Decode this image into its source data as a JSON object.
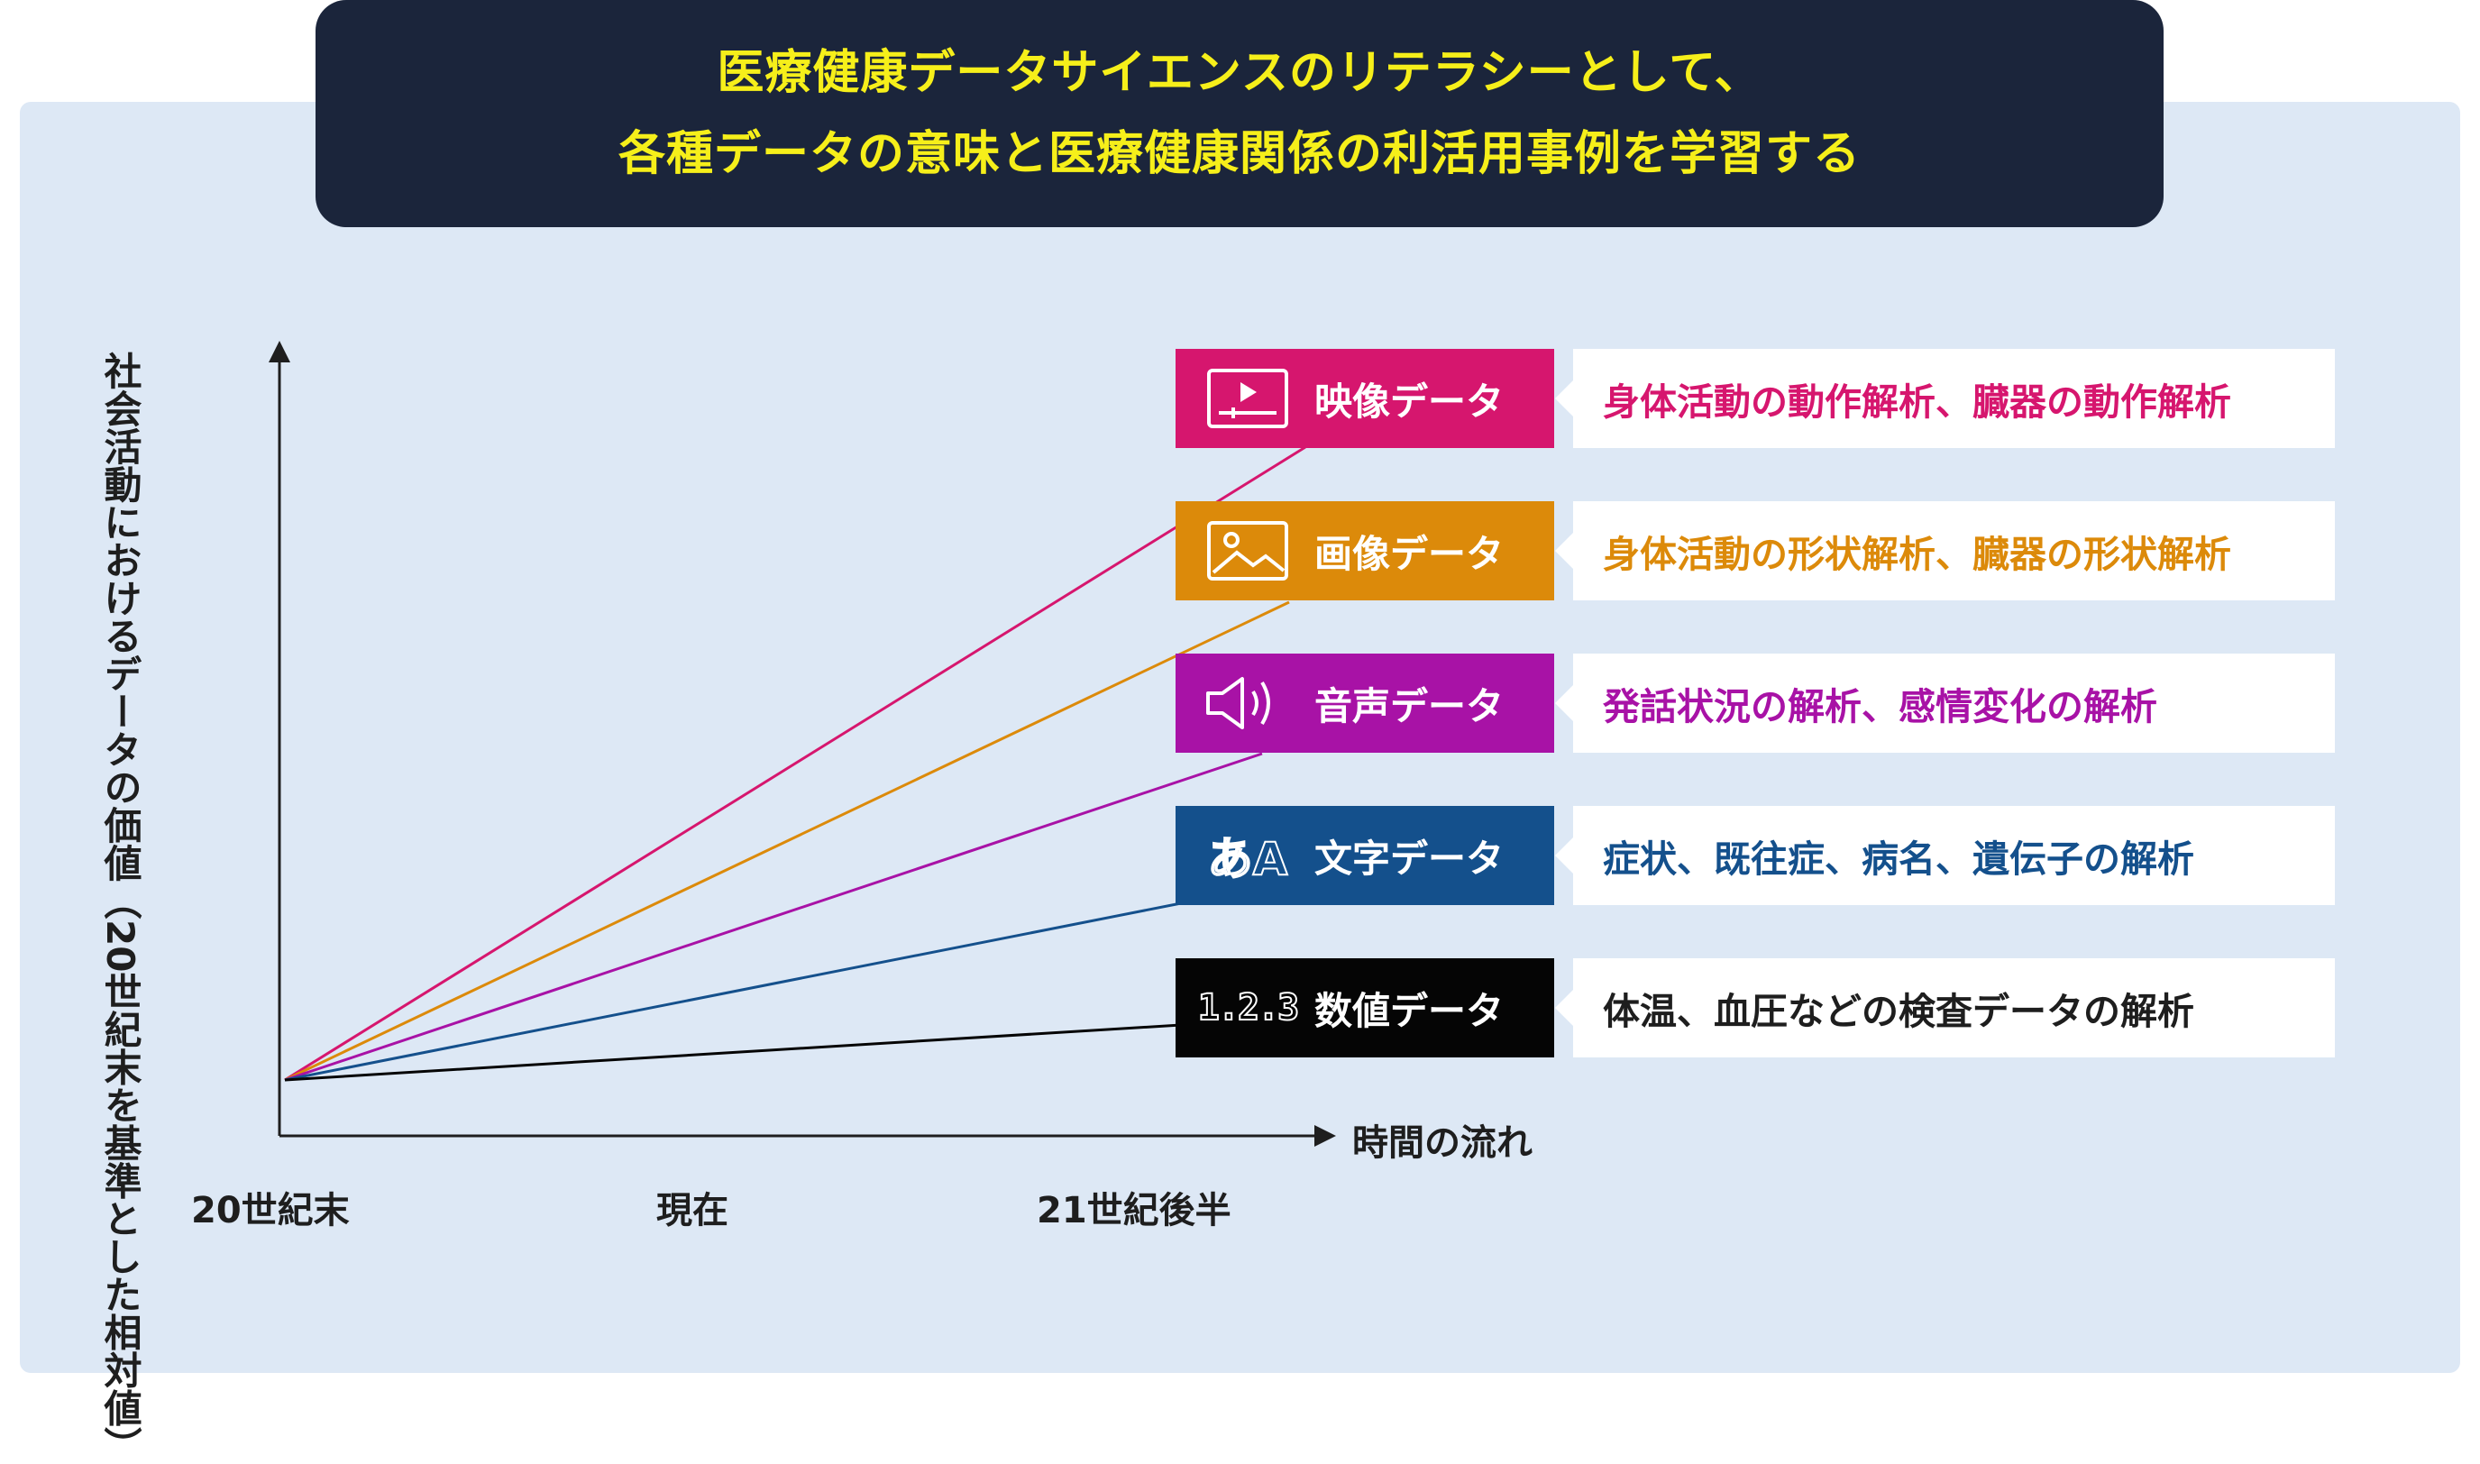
{
  "header": {
    "line1": "医療健康データサイエンスのリテラシーとして、",
    "line2": "各種データの意味と医療健康関係の利活用事例を学習する"
  },
  "axes": {
    "ylabel": "社会活動におけるデータの価値（20世紀末を基準とした相対値）",
    "xlabel": "時間の流れ",
    "ticks": [
      "20世紀末",
      "現在",
      "21世紀後半"
    ]
  },
  "categories": [
    {
      "label": "映像データ",
      "icon": "video-icon",
      "color": "#d6166e",
      "description": "身体活動の動作解析、臓器の動作解析",
      "text_color": "#d6166e"
    },
    {
      "label": "画像データ",
      "icon": "image-icon",
      "color": "#dc8a0a",
      "description": "身体活動の形状解析、臓器の形状解析",
      "text_color": "#dc8a0a"
    },
    {
      "label": "音声データ",
      "icon": "speaker-icon",
      "color": "#a812a6",
      "description": "発話状況の解析、感情変化の解析",
      "text_color": "#a812a6"
    },
    {
      "label": "文字データ",
      "icon": "letters-icon",
      "icon_text": "あA",
      "color": "#14508c",
      "description": "症状、既往症、病名、遺伝子の解析",
      "text_color": "#14508c"
    },
    {
      "label": "数値データ",
      "icon": "numbers-icon",
      "icon_text": "1.2.3",
      "color": "#050505",
      "description": "体温、血圧などの検査データの解析",
      "text_color": "#1e1e1e"
    }
  ],
  "colors": {
    "banner_bg": "#1b253b",
    "banner_text": "#f6ef1a",
    "panel_bg": "#dde8f5"
  }
}
